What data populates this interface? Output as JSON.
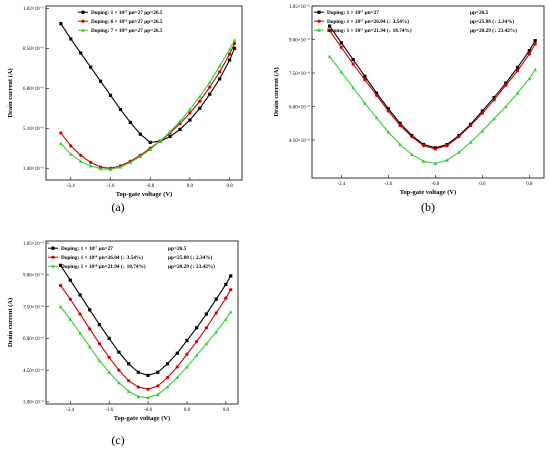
{
  "chart_data": [
    {
      "type": "line",
      "panel_label": "(a)",
      "xlabel": "Top-gate voltage (V)",
      "ylabel": "Drain current (A)",
      "xlim": [
        -2.9,
        1.05
      ],
      "ylim": [
        2.9e-06,
        1.03e-05
      ],
      "xticks": [
        -2.4,
        -1.6,
        -0.8,
        0.0,
        0.8
      ],
      "xtick_labels": [
        "-2.4",
        "-1.6",
        "-0.8",
        "0.0",
        "0.8"
      ],
      "yticks": [
        3.4e-06,
        5.1e-06,
        6.8e-06,
        8.5e-06,
        1.02e-05
      ],
      "ytick_labels": [
        "3.40×10⁻⁶",
        "5.10×10⁻⁶",
        "6.80×10⁻⁶",
        "8.50×10⁻⁶",
        "1.02×10⁻⁵"
      ],
      "legend_position": "top",
      "series": [
        {
          "name": "Doping: 1 × 10¹⁷  μn=27  μp=26.5",
          "color": "#000000",
          "marker": "square",
          "x": [
            -2.6,
            -2.4,
            -2.2,
            -2.0,
            -1.8,
            -1.6,
            -1.4,
            -1.2,
            -1.0,
            -0.8,
            -0.6,
            -0.4,
            -0.2,
            0.0,
            0.2,
            0.4,
            0.6,
            0.8,
            0.9
          ],
          "y": [
            9.55,
            8.9,
            8.3,
            7.7,
            7.1,
            6.5,
            5.9,
            5.35,
            4.85,
            4.5,
            4.55,
            4.75,
            5.05,
            5.45,
            5.95,
            6.55,
            7.2,
            8.0,
            8.5
          ]
        },
        {
          "name": "Doping: 6 × 10¹⁶  μn=27  μp=26.5",
          "color": "#cc0000",
          "marker": "circle",
          "x": [
            -2.6,
            -2.4,
            -2.2,
            -2.0,
            -1.8,
            -1.6,
            -1.4,
            -1.2,
            -1.0,
            -0.8,
            -0.6,
            -0.4,
            -0.2,
            0.0,
            0.2,
            0.4,
            0.6,
            0.8,
            0.9
          ],
          "y": [
            4.9,
            4.35,
            3.95,
            3.65,
            3.45,
            3.4,
            3.5,
            3.7,
            3.95,
            4.25,
            4.55,
            4.9,
            5.3,
            5.75,
            6.25,
            6.85,
            7.5,
            8.25,
            8.7
          ]
        },
        {
          "name": "Doping: 7 × 10¹⁶  μn=27  μp=26.5",
          "color": "#33cc33",
          "marker": "triangle",
          "x": [
            -2.6,
            -2.4,
            -2.2,
            -2.0,
            -1.8,
            -1.6,
            -1.4,
            -1.2,
            -1.0,
            -0.8,
            -0.6,
            -0.4,
            -0.2,
            0.0,
            0.2,
            0.4,
            0.6,
            0.8,
            0.9
          ],
          "y": [
            4.45,
            4.0,
            3.7,
            3.5,
            3.38,
            3.35,
            3.45,
            3.65,
            3.9,
            4.2,
            4.55,
            4.95,
            5.4,
            5.9,
            6.45,
            7.05,
            7.75,
            8.45,
            8.85
          ]
        }
      ]
    },
    {
      "type": "line",
      "panel_label": "(b)",
      "xlabel": "Top-gate voltage (V)",
      "ylabel": "Drain current (A)",
      "xlim": [
        -2.9,
        1.05
      ],
      "ylim": [
        2.8e-06,
        1.05e-05
      ],
      "xticks": [
        -2.4,
        -1.6,
        -0.8,
        0.0,
        0.8
      ],
      "xtick_labels": [
        "-2.4",
        "-1.6",
        "-0.8",
        "0.0",
        "0.8"
      ],
      "yticks": [
        4.5e-06,
        6e-06,
        7.5e-06,
        9e-06,
        1.05e-05
      ],
      "ytick_labels": [
        "4.50×10⁻⁶",
        "6.00×10⁻⁶",
        "7.50×10⁻⁶",
        "9.00×10⁻⁶",
        "1.05×10⁻⁵"
      ],
      "legend_position": "top",
      "series": [
        {
          "name": "Doping: 1 × 10¹⁷  μn=27",
          "extra": "μp=26.5",
          "color": "#000000",
          "marker": "square",
          "x": [
            -2.6,
            -2.4,
            -2.2,
            -2.0,
            -1.8,
            -1.6,
            -1.4,
            -1.2,
            -1.0,
            -0.8,
            -0.6,
            -0.4,
            -0.2,
            0.0,
            0.2,
            0.4,
            0.6,
            0.8,
            0.9
          ],
          "y": [
            9.6,
            8.85,
            8.1,
            7.35,
            6.6,
            5.9,
            5.25,
            4.7,
            4.3,
            4.15,
            4.3,
            4.7,
            5.2,
            5.8,
            6.4,
            7.05,
            7.75,
            8.5,
            8.95
          ]
        },
        {
          "name": "Doping: 1 × 10¹⁷  μn=26.04 (↓ 3.54%)",
          "extra": "μp=25.88 (↓ 2.34%)",
          "color": "#cc0000",
          "marker": "circle",
          "x": [
            -2.6,
            -2.4,
            -2.2,
            -2.0,
            -1.8,
            -1.6,
            -1.4,
            -1.2,
            -1.0,
            -0.8,
            -0.6,
            -0.4,
            -0.2,
            0.0,
            0.2,
            0.4,
            0.6,
            0.8,
            0.9
          ],
          "y": [
            9.4,
            8.65,
            7.9,
            7.2,
            6.5,
            5.8,
            5.15,
            4.65,
            4.25,
            4.1,
            4.25,
            4.65,
            5.15,
            5.7,
            6.3,
            6.95,
            7.6,
            8.35,
            8.8
          ]
        },
        {
          "name": "Doping: 1 × 10¹⁷  μn=21.94 (↓ 18.74%)",
          "extra": "μp=20.29 (↓ 23.42%)",
          "color": "#33cc33",
          "marker": "triangle",
          "x": [
            -2.6,
            -2.4,
            -2.2,
            -2.0,
            -1.8,
            -1.6,
            -1.4,
            -1.2,
            -1.0,
            -0.8,
            -0.6,
            -0.4,
            -0.2,
            0.0,
            0.2,
            0.4,
            0.6,
            0.8,
            0.9
          ],
          "y": [
            8.25,
            7.55,
            6.85,
            6.15,
            5.5,
            4.85,
            4.3,
            3.85,
            3.55,
            3.45,
            3.6,
            3.95,
            4.4,
            4.9,
            5.45,
            6.0,
            6.6,
            7.25,
            7.65
          ]
        }
      ]
    },
    {
      "type": "line",
      "panel_label": "(c)",
      "xlabel": "Top-gate voltage (V)",
      "ylabel": "Drain current (A)",
      "xlim": [
        -2.9,
        1.05
      ],
      "ylim": [
        2.9e-06,
        1.06e-05
      ],
      "xticks": [
        -2.4,
        -1.6,
        -0.8,
        0.0,
        0.8
      ],
      "xtick_labels": [
        "-2.4",
        "-1.6",
        "-0.8",
        "0.0",
        "0.8"
      ],
      "yticks": [
        3e-06,
        4.5e-06,
        6e-06,
        7.5e-06,
        9e-06,
        1.05e-05
      ],
      "ytick_labels": [
        "3.00×10⁻⁶",
        "4.50×10⁻⁶",
        "6.00×10⁻⁶",
        "7.50×10⁻⁶",
        "9.00×10⁻⁶",
        "1.05×10⁻⁵"
      ],
      "legend_position": "top",
      "series": [
        {
          "name": "Doping: 1 × 10¹⁷  μn=27",
          "extra": "μp=26.5",
          "color": "#000000",
          "marker": "square",
          "x": [
            -2.6,
            -2.4,
            -2.2,
            -2.0,
            -1.8,
            -1.6,
            -1.4,
            -1.2,
            -1.0,
            -0.8,
            -0.6,
            -0.4,
            -0.2,
            0.0,
            0.2,
            0.4,
            0.6,
            0.8,
            0.9
          ],
          "y": [
            9.45,
            8.75,
            8.05,
            7.35,
            6.65,
            6.0,
            5.35,
            4.8,
            4.4,
            4.25,
            4.4,
            4.8,
            5.3,
            5.9,
            6.5,
            7.15,
            7.85,
            8.55,
            8.95
          ]
        },
        {
          "name": "Doping: 1 × 10¹⁸  μn=26.04 (↓ 3.54%)",
          "extra": "μp=25.88 (↓ 2.34%)",
          "color": "#cc0000",
          "marker": "circle",
          "x": [
            -2.6,
            -2.4,
            -2.2,
            -2.0,
            -1.8,
            -1.6,
            -1.4,
            -1.2,
            -1.0,
            -0.8,
            -0.6,
            -0.4,
            -0.2,
            0.0,
            0.2,
            0.4,
            0.6,
            0.8,
            0.9
          ],
          "y": [
            8.5,
            7.85,
            7.15,
            6.45,
            5.75,
            5.1,
            4.5,
            4.0,
            3.7,
            3.6,
            3.75,
            4.15,
            4.65,
            5.25,
            5.85,
            6.5,
            7.2,
            7.9,
            8.3
          ]
        },
        {
          "name": "Doping: 1 × 10¹⁸  μn=21.94 (↓ 18.74%)",
          "extra": "μp=20.29 (↓ 23.42%)",
          "color": "#33cc33",
          "marker": "triangle",
          "x": [
            -2.6,
            -2.4,
            -2.2,
            -2.0,
            -1.8,
            -1.6,
            -1.4,
            -1.2,
            -1.0,
            -0.8,
            -0.6,
            -0.4,
            -0.2,
            0.0,
            0.2,
            0.4,
            0.6,
            0.8,
            0.9
          ],
          "y": [
            7.5,
            6.9,
            6.25,
            5.6,
            4.95,
            4.4,
            3.9,
            3.5,
            3.25,
            3.2,
            3.35,
            3.7,
            4.15,
            4.65,
            5.2,
            5.75,
            6.3,
            6.9,
            7.25
          ]
        }
      ]
    }
  ]
}
